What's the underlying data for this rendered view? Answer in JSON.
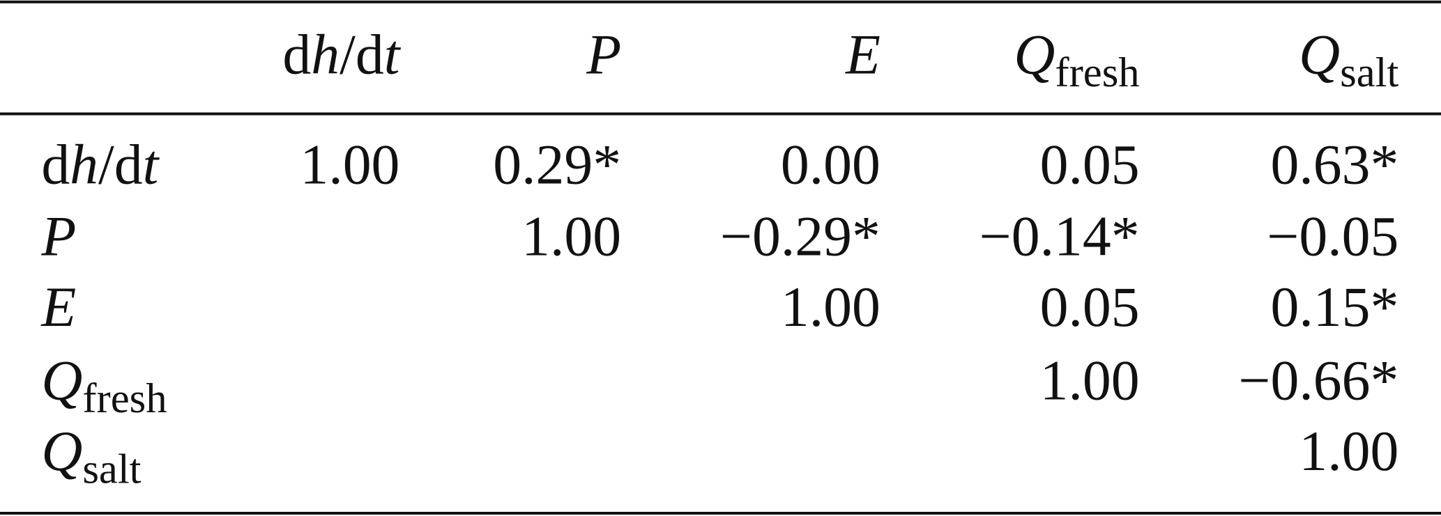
{
  "table": {
    "columns": [
      {
        "parts": [
          "d",
          "h",
          "/d",
          "t"
        ]
      },
      {
        "symbol": "P"
      },
      {
        "symbol": "E"
      },
      {
        "symbol": "Q",
        "subscript": "fresh"
      },
      {
        "symbol": "Q",
        "subscript": "salt"
      }
    ],
    "rows": [
      {
        "label": {
          "parts": [
            "d",
            "h",
            "/d",
            "t"
          ]
        },
        "cells": [
          "1.00",
          "0.29*",
          "0.00",
          "0.05",
          "0.63*"
        ]
      },
      {
        "label": {
          "symbol": "P"
        },
        "cells": [
          "1.00",
          "−0.29*",
          "−0.14*",
          "−0.05"
        ]
      },
      {
        "label": {
          "symbol": "E"
        },
        "cells": [
          "1.00",
          "0.05",
          "0.15*"
        ]
      },
      {
        "label": {
          "symbol": "Q",
          "subscript": "fresh"
        },
        "cells": [
          "1.00",
          "−0.66*"
        ]
      },
      {
        "label": {
          "symbol": "Q",
          "subscript": "salt"
        },
        "cells": [
          "1.00"
        ]
      }
    ]
  }
}
